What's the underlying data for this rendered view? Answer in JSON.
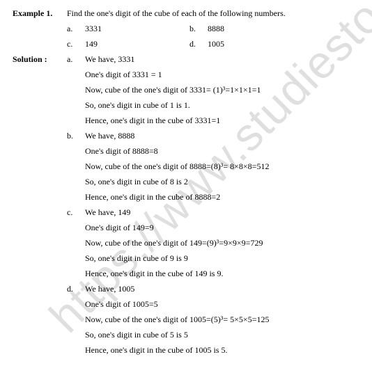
{
  "watermark": "https://www.studiestoday.c",
  "example_label": "Example 1.",
  "solution_label": "Solution :",
  "question": {
    "prompt": "Find the one's digit of the cube of each of the following numbers.",
    "items": [
      {
        "letter": "a.",
        "value": "3331"
      },
      {
        "letter": "b.",
        "value": "8888"
      },
      {
        "letter": "c.",
        "value": "149"
      },
      {
        "letter": "d.",
        "value": "1005"
      }
    ]
  },
  "solution": [
    {
      "letter": "a.",
      "lines": [
        "We have, 3331",
        "One's digit of 3331 = 1",
        "Now, cube of the one's digit of 3331= (1)³=1×1×1=1",
        "So, one's digit in cube of 1 is 1.",
        "Hence, one's digit in the cube of 3331=1"
      ]
    },
    {
      "letter": "b.",
      "lines": [
        "We have, 8888",
        "One's digit of 8888=8",
        "Now, cube of the one's digit of 8888=(8)³= 8×8×8=512",
        "So, one's digit in cube of 8 is 2",
        "Hence, one's digit in the cube of 8888=2"
      ]
    },
    {
      "letter": "c.",
      "lines": [
        "We have, 149",
        "One's digit of 149=9",
        "Now, cube of the one's digit of 149=(9)³=9×9×9=729",
        "So, one's digit in cube of 9 is 9",
        "Hence, one's digit in the cube of 149 is 9."
      ]
    },
    {
      "letter": "d.",
      "lines": [
        "We have, 1005",
        "One's digit of 1005=5",
        "Now, cube of the one's digit of 1005=(5)³= 5×5×5=125",
        "So, one's digit in cube of 5 is 5",
        "Hence, one's digit in the cube of 1005 is 5."
      ]
    }
  ]
}
